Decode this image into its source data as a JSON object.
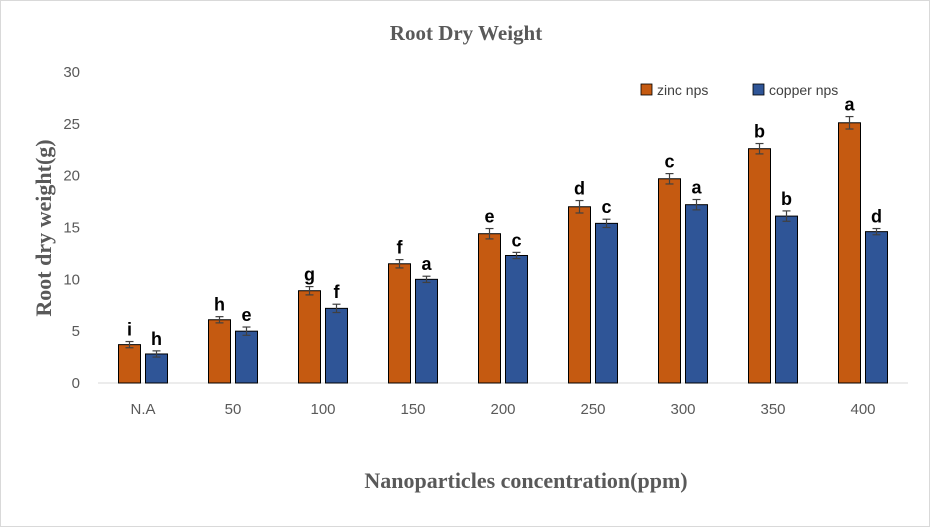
{
  "chart_data": {
    "type": "bar",
    "title": "Root Dry Weight",
    "xlabel": "Nanoparticles concentration(ppm)",
    "ylabel": "Root dry weight(g)",
    "ylim": [
      0,
      30
    ],
    "yticks": [
      0,
      5,
      10,
      15,
      20,
      25,
      30
    ],
    "grid": false,
    "legend_position": "top-right",
    "categories": [
      "N.A",
      "50",
      "100",
      "150",
      "200",
      "250",
      "300",
      "350",
      "400"
    ],
    "series": [
      {
        "name": "zinc nps",
        "color": "#c55a11",
        "values": [
          3.7,
          6.1,
          8.9,
          11.5,
          14.4,
          17.0,
          19.7,
          22.6,
          25.1
        ],
        "errors": [
          0.3,
          0.3,
          0.4,
          0.4,
          0.5,
          0.6,
          0.5,
          0.5,
          0.6
        ],
        "labels": [
          "i",
          "h",
          "g",
          "f",
          "e",
          "d",
          "c",
          "b",
          "a"
        ]
      },
      {
        "name": "copper nps",
        "color": "#2f5597",
        "values": [
          2.8,
          5.0,
          7.2,
          10.0,
          12.3,
          15.4,
          17.2,
          16.1,
          14.6
        ],
        "errors": [
          0.3,
          0.4,
          0.4,
          0.3,
          0.3,
          0.4,
          0.5,
          0.5,
          0.3
        ],
        "labels": [
          "h",
          "e",
          "f",
          "a",
          "c",
          "c",
          "a",
          "b",
          "d"
        ]
      }
    ]
  }
}
